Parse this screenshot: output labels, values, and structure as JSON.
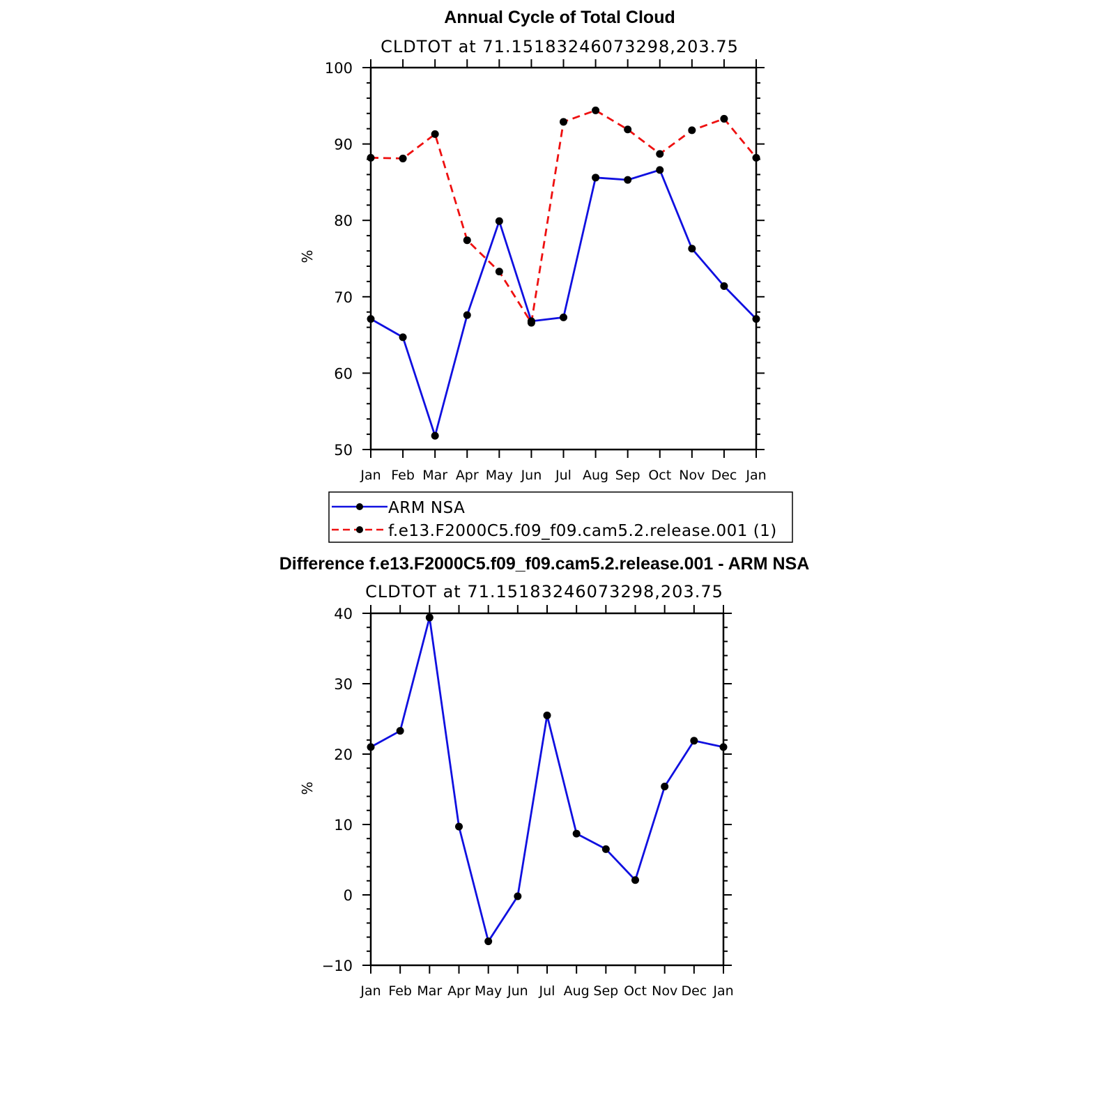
{
  "chart_data": [
    {
      "type": "line",
      "title": "Annual Cycle of Total Cloud",
      "subtitle": "CLDTOT at 71.15183246073298,203.75",
      "xlabel": "",
      "ylabel": "%",
      "categories": [
        "Jan",
        "Feb",
        "Mar",
        "Apr",
        "May",
        "Jun",
        "Jul",
        "Aug",
        "Sep",
        "Oct",
        "Nov",
        "Dec",
        "Jan"
      ],
      "ylim": [
        50,
        100
      ],
      "yticks": [
        50,
        60,
        70,
        80,
        90,
        100
      ],
      "series": [
        {
          "name": "ARM NSA",
          "color": "#1010e0",
          "dash": "solid",
          "values": [
            67.1,
            64.7,
            51.8,
            67.6,
            79.9,
            66.8,
            67.3,
            85.6,
            85.3,
            86.6,
            76.3,
            71.4,
            67.1
          ]
        },
        {
          "name": "f.e13.F2000C5.f09_f09.cam5.2.release.001 (1)",
          "color": "#ee1010",
          "dash": "dashed",
          "values": [
            88.2,
            88.1,
            91.3,
            77.4,
            73.3,
            66.6,
            92.9,
            94.4,
            91.9,
            88.7,
            91.8,
            93.3,
            88.2
          ]
        }
      ],
      "legend": [
        "ARM NSA",
        "f.e13.F2000C5.f09_f09.cam5.2.release.001 (1)"
      ]
    },
    {
      "type": "line",
      "title": "Difference f.e13.F2000C5.f09_f09.cam5.2.release.001 - ARM NSA",
      "subtitle": "CLDTOT at 71.15183246073298,203.75",
      "xlabel": "",
      "ylabel": "%",
      "categories": [
        "Jan",
        "Feb",
        "Mar",
        "Apr",
        "May",
        "Jun",
        "Jul",
        "Aug",
        "Sep",
        "Oct",
        "Nov",
        "Dec",
        "Jan"
      ],
      "ylim": [
        -10,
        40
      ],
      "yticks": [
        -10,
        0,
        10,
        20,
        30,
        40
      ],
      "series": [
        {
          "name": "Difference",
          "color": "#1010e0",
          "dash": "solid",
          "values": [
            21.0,
            23.3,
            39.4,
            9.7,
            -6.6,
            -0.2,
            25.5,
            8.7,
            6.5,
            2.1,
            15.4,
            21.9,
            21.0
          ]
        }
      ]
    }
  ]
}
